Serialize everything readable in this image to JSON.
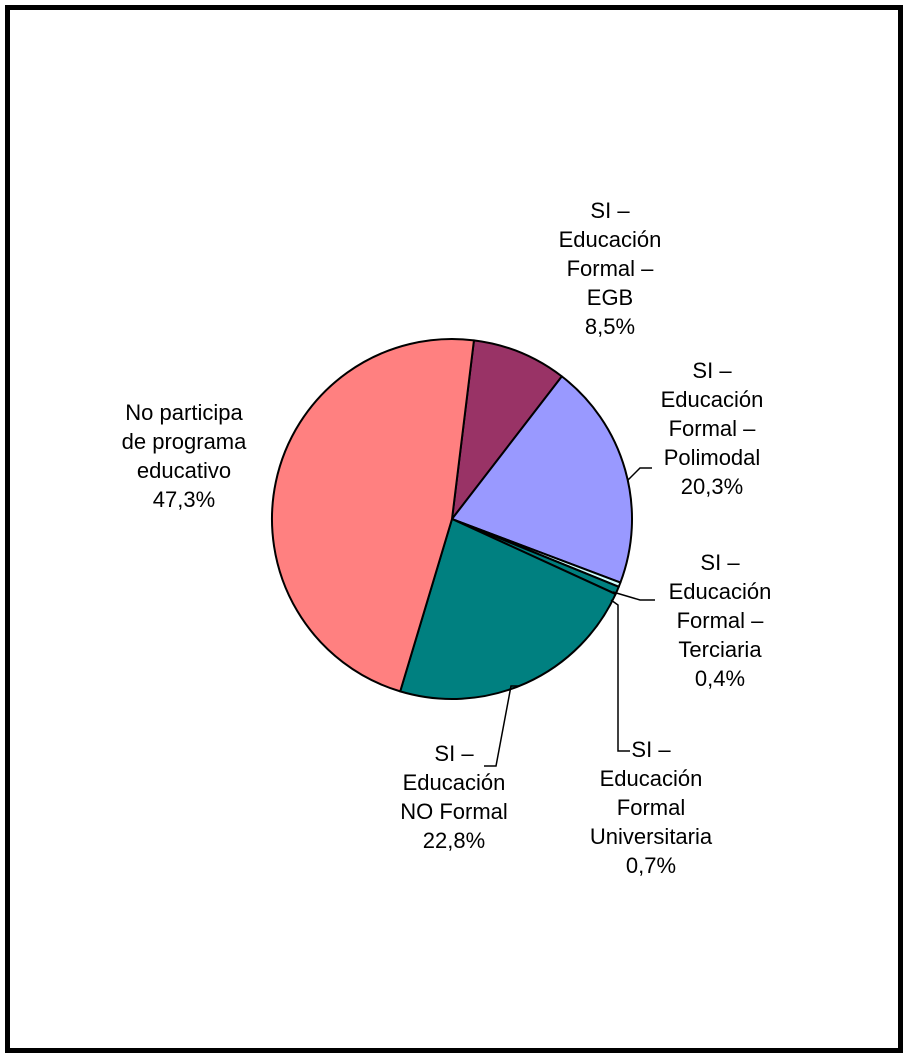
{
  "chart_data": {
    "type": "pie",
    "title": "",
    "slices": [
      {
        "label_lines": [
          "SI –",
          "Educación",
          "Formal –",
          "EGB"
        ],
        "value_label": "8,5%",
        "value": 8.5,
        "color": "#993366"
      },
      {
        "label_lines": [
          "SI –",
          "Educación",
          "Formal –",
          "Polimodal"
        ],
        "value_label": "20,3%",
        "value": 20.3,
        "color": "#9999FF"
      },
      {
        "label_lines": [
          "SI –",
          "Educación",
          "Formal –",
          "Terciaria"
        ],
        "value_label": "0,4%",
        "value": 0.4,
        "color": "#CCFFFF"
      },
      {
        "label_lines": [
          "SI –",
          "Educación",
          "Formal",
          "Universitaria"
        ],
        "value_label": "0,7%",
        "value": 0.7,
        "color": "#008080"
      },
      {
        "label_lines": [
          "SI –",
          "Educación",
          "NO Formal"
        ],
        "value_label": "22,8%",
        "value": 22.8,
        "color": "#008080"
      },
      {
        "label_lines": [
          "No participa",
          "de programa",
          "educativo"
        ],
        "value_label": "47,3%",
        "value": 47.3,
        "color": "#FF8080"
      }
    ],
    "slice_border_color": "#000000",
    "legend": "none",
    "data_labels": "outside with leader lines"
  }
}
